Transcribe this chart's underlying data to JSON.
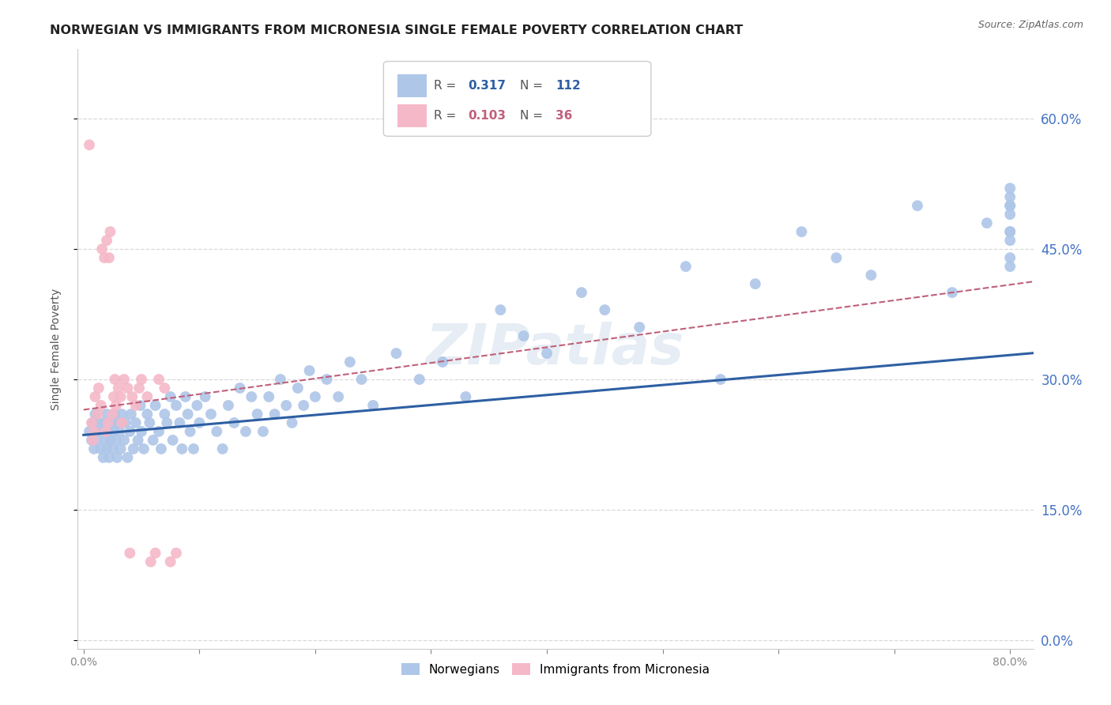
{
  "title": "NORWEGIAN VS IMMIGRANTS FROM MICRONESIA SINGLE FEMALE POVERTY CORRELATION CHART",
  "source": "Source: ZipAtlas.com",
  "xlabel_ticks": [
    "0.0%",
    "",
    "",
    "",
    "",
    "",
    "",
    "",
    "80.0%"
  ],
  "xlabel_vals": [
    0.0,
    0.1,
    0.2,
    0.3,
    0.4,
    0.5,
    0.6,
    0.7,
    0.8
  ],
  "ylabel": "Single Female Poverty",
  "ylabel_ticks": [
    "0.0%",
    "15.0%",
    "30.0%",
    "45.0%",
    "60.0%"
  ],
  "ylabel_vals": [
    0.0,
    0.15,
    0.3,
    0.45,
    0.6
  ],
  "right_ytick_color": "#4472c4",
  "xlim": [
    -0.005,
    0.82
  ],
  "ylim": [
    -0.01,
    0.68
  ],
  "blue_color": "#aec6e8",
  "pink_color": "#f5b8c8",
  "blue_line_color": "#2e5fa3",
  "pink_line_color": "#c0607a",
  "legend_R1": "0.317",
  "legend_N1": "112",
  "legend_R2": "0.103",
  "legend_N2": "36",
  "nor_intercept": 0.236,
  "nor_slope": 0.115,
  "mic_intercept": 0.265,
  "mic_slope": 0.18,
  "norwegians_x": [
    0.005,
    0.007,
    0.008,
    0.009,
    0.01,
    0.01,
    0.012,
    0.013,
    0.015,
    0.016,
    0.017,
    0.018,
    0.019,
    0.02,
    0.02,
    0.021,
    0.022,
    0.023,
    0.024,
    0.025,
    0.026,
    0.027,
    0.028,
    0.029,
    0.03,
    0.031,
    0.032,
    0.033,
    0.035,
    0.036,
    0.038,
    0.04,
    0.041,
    0.043,
    0.045,
    0.047,
    0.049,
    0.05,
    0.052,
    0.055,
    0.057,
    0.06,
    0.062,
    0.065,
    0.067,
    0.07,
    0.072,
    0.075,
    0.077,
    0.08,
    0.083,
    0.085,
    0.088,
    0.09,
    0.092,
    0.095,
    0.098,
    0.1,
    0.105,
    0.11,
    0.115,
    0.12,
    0.125,
    0.13,
    0.135,
    0.14,
    0.145,
    0.15,
    0.155,
    0.16,
    0.165,
    0.17,
    0.175,
    0.18,
    0.185,
    0.19,
    0.195,
    0.2,
    0.21,
    0.22,
    0.23,
    0.24,
    0.25,
    0.27,
    0.29,
    0.31,
    0.33,
    0.36,
    0.38,
    0.4,
    0.43,
    0.45,
    0.48,
    0.52,
    0.55,
    0.58,
    0.62,
    0.65,
    0.68,
    0.72,
    0.75,
    0.78,
    0.8,
    0.8,
    0.8,
    0.8,
    0.8,
    0.8,
    0.8,
    0.8,
    0.8,
    0.8
  ],
  "norwegians_y": [
    0.24,
    0.23,
    0.25,
    0.22,
    0.26,
    0.24,
    0.23,
    0.25,
    0.22,
    0.24,
    0.21,
    0.25,
    0.23,
    0.22,
    0.26,
    0.24,
    0.21,
    0.23,
    0.25,
    0.22,
    0.24,
    0.26,
    0.23,
    0.21,
    0.25,
    0.24,
    0.22,
    0.26,
    0.23,
    0.25,
    0.21,
    0.24,
    0.26,
    0.22,
    0.25,
    0.23,
    0.27,
    0.24,
    0.22,
    0.26,
    0.25,
    0.23,
    0.27,
    0.24,
    0.22,
    0.26,
    0.25,
    0.28,
    0.23,
    0.27,
    0.25,
    0.22,
    0.28,
    0.26,
    0.24,
    0.22,
    0.27,
    0.25,
    0.28,
    0.26,
    0.24,
    0.22,
    0.27,
    0.25,
    0.29,
    0.24,
    0.28,
    0.26,
    0.24,
    0.28,
    0.26,
    0.3,
    0.27,
    0.25,
    0.29,
    0.27,
    0.31,
    0.28,
    0.3,
    0.28,
    0.32,
    0.3,
    0.27,
    0.33,
    0.3,
    0.32,
    0.28,
    0.38,
    0.35,
    0.33,
    0.4,
    0.38,
    0.36,
    0.43,
    0.3,
    0.41,
    0.47,
    0.44,
    0.42,
    0.5,
    0.4,
    0.48,
    0.51,
    0.49,
    0.46,
    0.43,
    0.47,
    0.44,
    0.5,
    0.47,
    0.52,
    0.5
  ],
  "micronesia_x": [
    0.005,
    0.007,
    0.008,
    0.009,
    0.01,
    0.012,
    0.013,
    0.015,
    0.016,
    0.018,
    0.019,
    0.02,
    0.021,
    0.022,
    0.023,
    0.025,
    0.026,
    0.027,
    0.028,
    0.03,
    0.032,
    0.033,
    0.035,
    0.038,
    0.04,
    0.042,
    0.045,
    0.048,
    0.05,
    0.055,
    0.058,
    0.062,
    0.065,
    0.07,
    0.075,
    0.08
  ],
  "micronesia_y": [
    0.57,
    0.25,
    0.23,
    0.24,
    0.28,
    0.26,
    0.29,
    0.27,
    0.45,
    0.44,
    0.24,
    0.46,
    0.25,
    0.44,
    0.47,
    0.26,
    0.28,
    0.3,
    0.27,
    0.29,
    0.28,
    0.25,
    0.3,
    0.29,
    0.1,
    0.28,
    0.27,
    0.29,
    0.3,
    0.28,
    0.09,
    0.1,
    0.3,
    0.29,
    0.09,
    0.1
  ],
  "background_color": "#ffffff",
  "grid_color": "#d8d8d8",
  "watermark": "ZIPatlas",
  "title_fontsize": 11.5,
  "axis_label_fontsize": 10,
  "tick_fontsize": 10
}
